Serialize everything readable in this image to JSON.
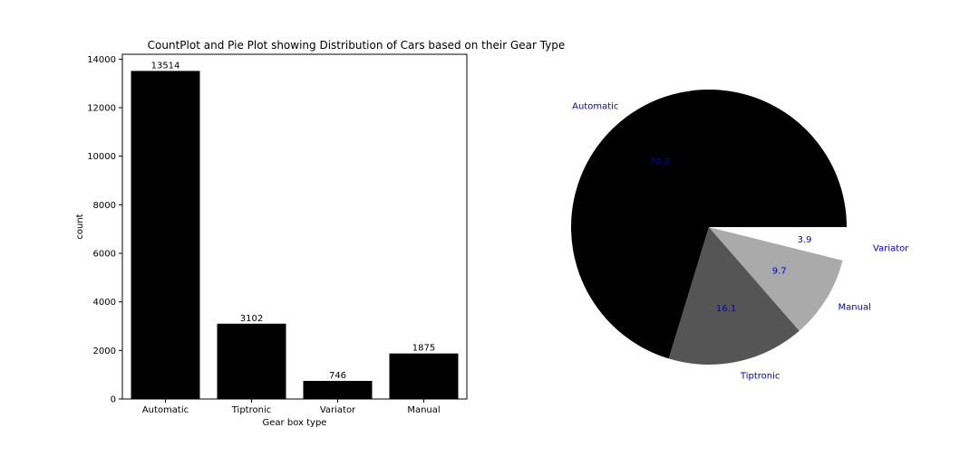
{
  "title": "CountPlot and Pie Plot showing Distribution of Cars based on their Gear Type",
  "chart_data": [
    {
      "type": "bar",
      "categories": [
        "Automatic",
        "Tiptronic",
        "Variator",
        "Manual"
      ],
      "values": [
        13514,
        3102,
        746,
        1875
      ],
      "data_labels": [
        "13514",
        "3102",
        "746",
        "1875"
      ],
      "xlabel": "Gear box type",
      "ylabel": "count",
      "ylim": [
        0,
        14200
      ],
      "yticks": [
        0,
        2000,
        4000,
        6000,
        8000,
        10000,
        12000,
        14000
      ],
      "bar_color": "#000000",
      "grid": false
    },
    {
      "type": "pie",
      "labels": [
        "Automatic",
        "Tiptronic",
        "Manual",
        "Variator"
      ],
      "values": [
        70.3,
        16.1,
        9.7,
        3.9
      ],
      "pct_labels": [
        "70.3",
        "16.1",
        "9.7",
        "3.9"
      ],
      "colors": [
        "#000000",
        "#555555",
        "#aaaaaa",
        "#ffffff"
      ],
      "label_color": "#0000cc",
      "explode": [
        0,
        0,
        0,
        0.1
      ]
    }
  ]
}
